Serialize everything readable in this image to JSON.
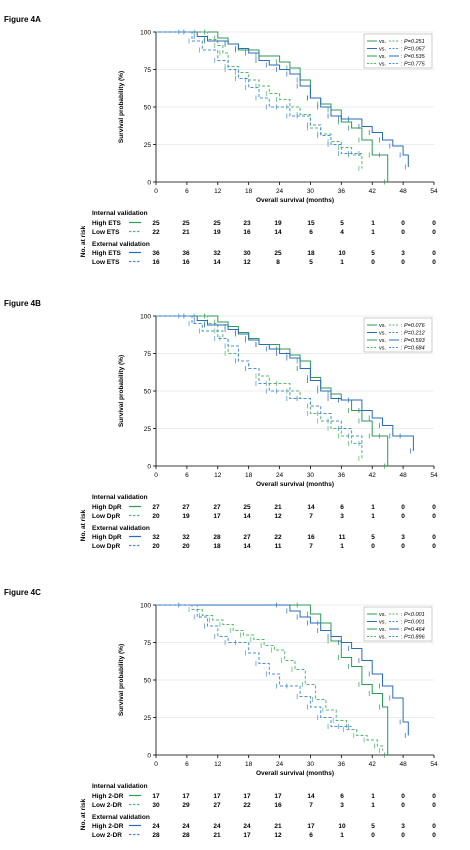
{
  "colors": {
    "green_dark": "#2e9a58",
    "green_light": "#52b86f",
    "blue_dark": "#2b6cb8",
    "blue_light": "#4a8fd6",
    "grid": "#d9d9d9"
  },
  "chart_data": [
    {
      "type": "line",
      "figure_label": "Figure 4A",
      "ylabel": "Survival probability (%)",
      "xlabel": "Overall survival (months)",
      "xlim": [
        0,
        54
      ],
      "ylim": [
        0,
        100
      ],
      "xticks": [
        0,
        6,
        12,
        18,
        24,
        30,
        36,
        42,
        48,
        54
      ],
      "yticks": [
        0,
        25,
        50,
        75,
        100
      ],
      "legend_position": "top-right",
      "legend": [
        {
          "vs": "vs.",
          "p": "P=0.251",
          "c1": "green_dark",
          "c2": "green_light",
          "d1": false,
          "d2": true
        },
        {
          "vs": "vs.",
          "p": "P=0.057",
          "c1": "blue_dark",
          "c2": "blue_light",
          "d1": false,
          "d2": true
        },
        {
          "vs": "vs.",
          "p": "P=0.535",
          "c1": "green_dark",
          "c2": "blue_dark",
          "d1": false,
          "d2": false
        },
        {
          "vs": "vs.",
          "p": "P=0.775",
          "c1": "green_light",
          "c2": "blue_light",
          "d1": true,
          "d2": true
        }
      ],
      "series": [
        {
          "color": "green_dark",
          "dashed": false,
          "x": [
            0,
            10,
            12,
            14,
            16,
            20,
            24,
            26,
            28,
            30,
            32,
            34,
            36,
            38,
            40,
            42,
            44,
            45
          ],
          "y": [
            100,
            100,
            96,
            92,
            88,
            84,
            80,
            76,
            68,
            56,
            52,
            48,
            40,
            36,
            28,
            18,
            18,
            0
          ]
        },
        {
          "color": "green_light",
          "dashed": true,
          "x": [
            0,
            8,
            10,
            12,
            13,
            14,
            16,
            18,
            20,
            22,
            24,
            26,
            28,
            30,
            32,
            34,
            36,
            38,
            40
          ],
          "y": [
            100,
            100,
            95,
            91,
            86,
            77,
            73,
            68,
            64,
            59,
            55,
            50,
            45,
            36,
            32,
            27,
            23,
            18,
            9
          ]
        },
        {
          "color": "blue_dark",
          "dashed": false,
          "x": [
            0,
            6,
            8,
            10,
            14,
            16,
            18,
            20,
            22,
            24,
            26,
            28,
            30,
            32,
            34,
            36,
            38,
            40,
            42,
            44,
            46,
            48,
            49
          ],
          "y": [
            100,
            100,
            97,
            94,
            92,
            89,
            86,
            81,
            78,
            75,
            72,
            64,
            56,
            50,
            44,
            42,
            42,
            37,
            33,
            28,
            24,
            18,
            10
          ]
        },
        {
          "color": "blue_light",
          "dashed": true,
          "x": [
            0,
            5,
            7,
            9,
            12,
            14,
            16,
            18,
            20,
            22,
            24,
            26,
            28,
            30,
            32,
            34,
            36,
            38,
            40
          ],
          "y": [
            100,
            100,
            94,
            88,
            81,
            75,
            69,
            63,
            56,
            50,
            50,
            44,
            44,
            38,
            31,
            25,
            19,
            19,
            19
          ]
        }
      ],
      "risk_table": {
        "side_label": "No. at risk",
        "group1_title": "Internal validation",
        "group2_title": "External validation",
        "rows": [
          {
            "label": "High ETS",
            "color": "green_dark",
            "dashed": false,
            "values": [
              "25",
              "25",
              "25",
              "23",
              "19",
              "15",
              "5",
              "1",
              "0",
              "0"
            ]
          },
          {
            "label": "Low ETS",
            "color": "green_light",
            "dashed": true,
            "values": [
              "22",
              "21",
              "19",
              "16",
              "14",
              "6",
              "4",
              "1",
              "0",
              "0"
            ]
          },
          {
            "label": "High ETS",
            "color": "blue_dark",
            "dashed": false,
            "values": [
              "36",
              "36",
              "32",
              "30",
              "25",
              "18",
              "10",
              "5",
              "3",
              "0"
            ]
          },
          {
            "label": "Low ETS",
            "color": "blue_light",
            "dashed": true,
            "values": [
              "16",
              "16",
              "14",
              "12",
              "8",
              "5",
              "1",
              "0",
              "0",
              "0"
            ]
          }
        ]
      }
    },
    {
      "type": "line",
      "figure_label": "Figure 4B",
      "ylabel": "Survival probability (%)",
      "xlabel": "Overall survival (months)",
      "xlim": [
        0,
        54
      ],
      "ylim": [
        0,
        100
      ],
      "xticks": [
        0,
        6,
        12,
        18,
        24,
        30,
        36,
        42,
        48,
        54
      ],
      "yticks": [
        0,
        25,
        50,
        75,
        100
      ],
      "legend_position": "top-right",
      "legend": [
        {
          "vs": "vs.",
          "p": "P=0.076",
          "c1": "green_dark",
          "c2": "green_light",
          "d1": false,
          "d2": true
        },
        {
          "vs": "vs.",
          "p": "P=0.212",
          "c1": "blue_dark",
          "c2": "blue_light",
          "d1": false,
          "d2": true
        },
        {
          "vs": "vs.",
          "p": "P=0.593",
          "c1": "green_dark",
          "c2": "blue_dark",
          "d1": false,
          "d2": false
        },
        {
          "vs": "vs.",
          "p": "P=0.684",
          "c1": "green_light",
          "c2": "blue_light",
          "d1": true,
          "d2": true
        }
      ],
      "series": [
        {
          "color": "green_dark",
          "dashed": false,
          "x": [
            0,
            10,
            12,
            14,
            16,
            18,
            20,
            24,
            26,
            28,
            30,
            32,
            34,
            36,
            38,
            40,
            42,
            44,
            45
          ],
          "y": [
            100,
            100,
            96,
            93,
            89,
            85,
            81,
            78,
            74,
            70,
            59,
            52,
            48,
            44,
            37,
            30,
            20,
            20,
            0
          ]
        },
        {
          "color": "green_light",
          "dashed": true,
          "x": [
            0,
            8,
            10,
            12,
            13,
            14,
            16,
            18,
            20,
            22,
            24,
            26,
            28,
            30,
            32,
            34,
            36,
            38,
            40
          ],
          "y": [
            100,
            100,
            95,
            90,
            85,
            75,
            70,
            65,
            60,
            55,
            55,
            50,
            45,
            35,
            30,
            25,
            20,
            15,
            5
          ]
        },
        {
          "color": "blue_dark",
          "dashed": false,
          "x": [
            0,
            6,
            8,
            10,
            14,
            16,
            18,
            20,
            22,
            24,
            26,
            28,
            30,
            32,
            34,
            36,
            38,
            40,
            42,
            44,
            46,
            48,
            50
          ],
          "y": [
            100,
            100,
            97,
            94,
            91,
            88,
            84,
            81,
            78,
            75,
            72,
            65,
            57,
            50,
            45,
            44,
            44,
            37,
            32,
            27,
            20,
            20,
            10
          ]
        },
        {
          "color": "blue_light",
          "dashed": true,
          "x": [
            0,
            5,
            7,
            9,
            12,
            14,
            16,
            18,
            20,
            22,
            24,
            26,
            28,
            30,
            32,
            34,
            36,
            38,
            40
          ],
          "y": [
            100,
            100,
            95,
            90,
            85,
            80,
            70,
            65,
            55,
            50,
            50,
            45,
            45,
            40,
            35,
            30,
            25,
            20,
            15
          ]
        }
      ],
      "risk_table": {
        "side_label": "No. at risk",
        "group1_title": "Internal validation",
        "group2_title": "External validation",
        "rows": [
          {
            "label": "High DpR",
            "color": "green_dark",
            "dashed": false,
            "values": [
              "27",
              "27",
              "27",
              "25",
              "21",
              "14",
              "6",
              "1",
              "0",
              "0"
            ]
          },
          {
            "label": "Low DpR",
            "color": "green_light",
            "dashed": true,
            "values": [
              "20",
              "19",
              "17",
              "14",
              "12",
              "7",
              "3",
              "1",
              "0",
              "0"
            ]
          },
          {
            "label": "High DpR",
            "color": "blue_dark",
            "dashed": false,
            "values": [
              "32",
              "32",
              "28",
              "27",
              "22",
              "16",
              "11",
              "5",
              "3",
              "0"
            ]
          },
          {
            "label": "Low DpR",
            "color": "blue_light",
            "dashed": true,
            "values": [
              "20",
              "20",
              "18",
              "14",
              "11",
              "7",
              "1",
              "0",
              "0",
              "0"
            ]
          }
        ]
      }
    },
    {
      "type": "line",
      "figure_label": "Figure 4C",
      "ylabel": "Survival probability (%)",
      "xlabel": "Overall survival (months)",
      "xlim": [
        0,
        54
      ],
      "ylim": [
        0,
        100
      ],
      "xticks": [
        0,
        6,
        12,
        18,
        24,
        30,
        36,
        42,
        48,
        54
      ],
      "yticks": [
        0,
        25,
        50,
        75,
        100
      ],
      "legend_position": "top-right",
      "legend": [
        {
          "vs": "vs.",
          "p": "P<0.001",
          "c1": "green_dark",
          "c2": "green_light",
          "d1": false,
          "d2": true
        },
        {
          "vs": "vs.",
          "p": "P=0.001",
          "c1": "blue_dark",
          "c2": "blue_light",
          "d1": false,
          "d2": true
        },
        {
          "vs": "vs.",
          "p": "P=0.464",
          "c1": "green_dark",
          "c2": "blue_dark",
          "d1": false,
          "d2": false
        },
        {
          "vs": "vs.",
          "p": "P=0.896",
          "c1": "green_light",
          "c2": "blue_light",
          "d1": true,
          "d2": true
        }
      ],
      "series": [
        {
          "color": "green_dark",
          "dashed": false,
          "x": [
            0,
            28,
            30,
            32,
            34,
            36,
            38,
            40,
            42,
            44,
            45
          ],
          "y": [
            100,
            100,
            94,
            88,
            76,
            65,
            59,
            47,
            41,
            32,
            0
          ]
        },
        {
          "color": "green_light",
          "dashed": true,
          "x": [
            0,
            5,
            7,
            9,
            11,
            13,
            15,
            17,
            19,
            21,
            23,
            25,
            27,
            29,
            31,
            33,
            35,
            37,
            39,
            41,
            43,
            44
          ],
          "y": [
            100,
            100,
            97,
            93,
            90,
            87,
            83,
            80,
            77,
            73,
            70,
            63,
            57,
            47,
            37,
            30,
            23,
            17,
            13,
            10,
            6,
            3
          ]
        },
        {
          "color": "blue_dark",
          "dashed": false,
          "x": [
            0,
            24,
            26,
            28,
            30,
            32,
            34,
            36,
            38,
            40,
            42,
            44,
            46,
            48,
            49
          ],
          "y": [
            100,
            100,
            96,
            92,
            88,
            83,
            79,
            75,
            71,
            63,
            54,
            46,
            38,
            22,
            13
          ]
        },
        {
          "color": "blue_light",
          "dashed": true,
          "x": [
            0,
            5,
            8,
            10,
            12,
            14,
            16,
            18,
            20,
            22,
            24,
            26,
            28,
            30,
            32,
            34,
            36,
            38
          ],
          "y": [
            100,
            100,
            92,
            86,
            79,
            75,
            75,
            68,
            61,
            54,
            46,
            46,
            39,
            32,
            25,
            19,
            19,
            19
          ]
        }
      ],
      "risk_table": {
        "side_label": "No. at risk",
        "group1_title": "Internal validation",
        "group2_title": "External validation",
        "rows": [
          {
            "label": "High 2-DR",
            "color": "green_dark",
            "dashed": false,
            "values": [
              "17",
              "17",
              "17",
              "17",
              "17",
              "14",
              "6",
              "1",
              "0",
              "0"
            ]
          },
          {
            "label": "Low 2-DR",
            "color": "green_light",
            "dashed": true,
            "values": [
              "30",
              "29",
              "27",
              "22",
              "16",
              "7",
              "3",
              "1",
              "0",
              "0"
            ]
          },
          {
            "label": "High 2-DR",
            "color": "blue_dark",
            "dashed": false,
            "values": [
              "24",
              "24",
              "24",
              "24",
              "21",
              "17",
              "10",
              "5",
              "3",
              "0"
            ]
          },
          {
            "label": "Low 2-DR",
            "color": "blue_light",
            "dashed": true,
            "values": [
              "28",
              "28",
              "21",
              "17",
              "12",
              "6",
              "1",
              "0",
              "0",
              "0"
            ]
          }
        ]
      }
    }
  ]
}
